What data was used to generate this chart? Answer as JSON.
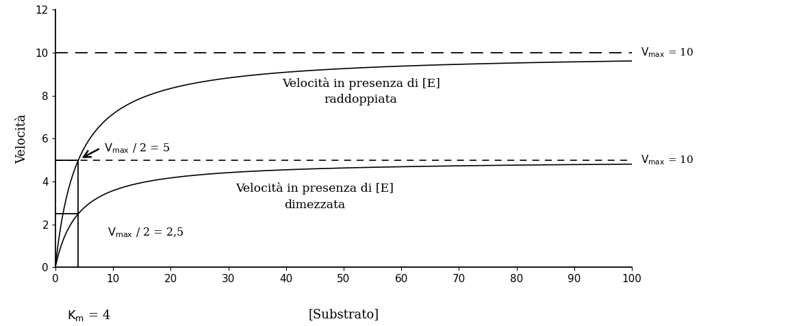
{
  "Km": 4,
  "Vmax_upper": 10,
  "Vmax_lower": 5,
  "x_max": 100,
  "y_max": 12,
  "xlabel": "[Substrato]",
  "ylabel": "Velocità",
  "km_label_text": "K",
  "km_label_sub": "m",
  "km_label_val": " = 4",
  "dashed_top_y": 10,
  "dashed_mid_y": 5,
  "label_right_top": "V",
  "label_right_mid": "V",
  "annotation_top_line1": "Velocità in presenza di [E]",
  "annotation_top_line2": "raddoppiata",
  "annotation_bot_line1": "Velocità in presenza di [E]",
  "annotation_bot_line2": "dimezzata",
  "vmax2_arrow_label": "V",
  "vmax2_bottom_label": "V",
  "curve_color": "#000000",
  "xticks": [
    0,
    10,
    20,
    30,
    40,
    50,
    60,
    70,
    80,
    90,
    100
  ],
  "yticks": [
    0,
    2,
    4,
    6,
    8,
    10,
    12
  ],
  "fig_width": 11.54,
  "fig_height": 4.76
}
